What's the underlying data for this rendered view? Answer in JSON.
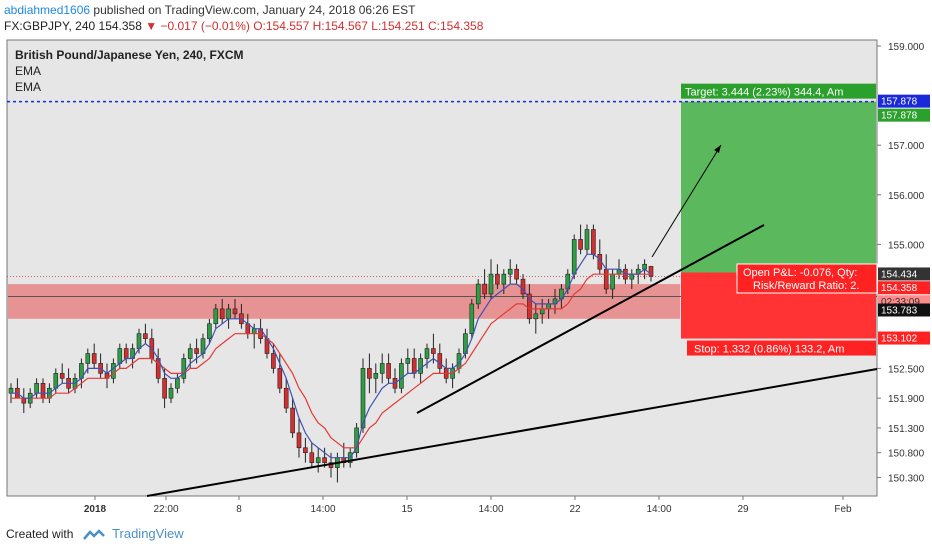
{
  "header": {
    "author": "abdiahmed1606",
    "published_text": "published on TradingView.com, January 24, 2018 06:26 EST",
    "symbol_line": "FX:GBPJPY, 240",
    "last": "154.358",
    "change": "▼ −0.017 (−0.01%)",
    "ohlc": "O:154.557 H:154.567 L:154.251 C:154.358"
  },
  "legend": {
    "title": "British Pound/Japanese Yen, 240, FXCM",
    "ind1": "EMA",
    "ind2": "EMA"
  },
  "footer": {
    "created": "Created with",
    "brand": "TradingView"
  },
  "colors": {
    "up": "#2e9e44",
    "down": "#d32f2f",
    "ema_fast": "#3f51b5",
    "ema_slow": "#e53935",
    "zone": "#e88a8a",
    "target": "#5cb85c",
    "stop": "#ff3333",
    "dotted_line": "#1a2ad8",
    "axis_bg": "#ffffff",
    "plot_bg": "#e6e6e6"
  },
  "chart_data": {
    "type": "candlestick",
    "instrument": "GBPJPY",
    "timeframe": "240",
    "source": "FXCM",
    "y_range": [
      150.0,
      159.2
    ],
    "y_ticks": [
      "159.000",
      "157.000",
      "156.000",
      "155.000",
      "152.500",
      "151.900",
      "151.300",
      "150.800",
      "150.300"
    ],
    "x_ticks": [
      "2018",
      "22:00",
      "8",
      "14:00",
      "15",
      "14:00",
      "22",
      "14:00",
      "29",
      "Feb"
    ],
    "bars": [
      [
        152.0,
        152.2,
        151.8,
        152.1
      ],
      [
        152.1,
        152.3,
        151.9,
        151.9
      ],
      [
        151.9,
        152.1,
        151.6,
        151.8
      ],
      [
        151.8,
        152.1,
        151.7,
        152.0
      ],
      [
        152.0,
        152.3,
        151.9,
        152.2
      ],
      [
        152.2,
        152.3,
        151.8,
        151.9
      ],
      [
        151.9,
        152.2,
        151.8,
        152.1
      ],
      [
        152.1,
        152.5,
        152.0,
        152.4
      ],
      [
        152.4,
        152.6,
        152.2,
        152.3
      ],
      [
        152.3,
        152.5,
        152.0,
        152.1
      ],
      [
        152.1,
        152.4,
        152.0,
        152.3
      ],
      [
        152.3,
        152.7,
        152.1,
        152.6
      ],
      [
        152.6,
        152.9,
        152.4,
        152.8
      ],
      [
        152.8,
        153.0,
        152.5,
        152.6
      ],
      [
        152.6,
        152.8,
        152.3,
        152.4
      ],
      [
        152.4,
        152.6,
        152.1,
        152.3
      ],
      [
        152.3,
        152.7,
        152.2,
        152.6
      ],
      [
        152.6,
        153.0,
        152.5,
        152.9
      ],
      [
        152.9,
        153.0,
        152.6,
        152.7
      ],
      [
        152.7,
        153.0,
        152.5,
        152.9
      ],
      [
        152.9,
        153.3,
        152.8,
        153.2
      ],
      [
        153.2,
        153.4,
        153.0,
        153.1
      ],
      [
        153.1,
        153.3,
        152.6,
        152.7
      ],
      [
        152.7,
        152.9,
        152.2,
        152.3
      ],
      [
        152.3,
        152.5,
        151.7,
        151.9
      ],
      [
        151.9,
        152.2,
        151.8,
        152.1
      ],
      [
        152.1,
        152.4,
        152.0,
        152.3
      ],
      [
        152.3,
        152.8,
        152.2,
        152.7
      ],
      [
        152.7,
        153.0,
        152.5,
        152.9
      ],
      [
        152.9,
        153.1,
        152.6,
        152.8
      ],
      [
        152.8,
        153.2,
        152.7,
        153.1
      ],
      [
        153.1,
        153.5,
        153.0,
        153.4
      ],
      [
        153.4,
        153.8,
        153.3,
        153.7
      ],
      [
        153.7,
        153.9,
        153.4,
        153.5
      ],
      [
        153.5,
        153.8,
        153.3,
        153.7
      ],
      [
        153.7,
        153.9,
        153.5,
        153.6
      ],
      [
        153.6,
        153.8,
        153.3,
        153.4
      ],
      [
        153.4,
        153.6,
        153.1,
        153.2
      ],
      [
        153.2,
        153.4,
        152.9,
        153.3
      ],
      [
        153.3,
        153.5,
        153.0,
        153.1
      ],
      [
        153.1,
        153.3,
        152.7,
        152.8
      ],
      [
        152.8,
        153.0,
        152.4,
        152.5
      ],
      [
        152.5,
        152.8,
        152.0,
        152.1
      ],
      [
        152.1,
        152.3,
        151.6,
        151.7
      ],
      [
        151.7,
        151.9,
        151.1,
        151.2
      ],
      [
        151.2,
        151.5,
        150.7,
        150.9
      ],
      [
        150.9,
        151.1,
        150.6,
        150.8
      ],
      [
        150.8,
        151.0,
        150.5,
        150.6
      ],
      [
        150.6,
        150.9,
        150.4,
        150.7
      ],
      [
        150.7,
        150.9,
        150.5,
        150.6
      ],
      [
        150.6,
        150.8,
        150.3,
        150.5
      ],
      [
        150.5,
        150.8,
        150.2,
        150.7
      ],
      [
        150.7,
        151.0,
        150.5,
        150.6
      ],
      [
        150.6,
        150.9,
        150.5,
        150.8
      ],
      [
        150.8,
        151.4,
        150.7,
        151.3
      ],
      [
        151.3,
        152.7,
        151.2,
        152.5
      ],
      [
        152.5,
        152.8,
        152.0,
        152.3
      ],
      [
        152.3,
        152.6,
        152.0,
        152.4
      ],
      [
        152.4,
        152.8,
        152.2,
        152.6
      ],
      [
        152.6,
        152.8,
        152.2,
        152.3
      ],
      [
        152.3,
        152.5,
        152.0,
        152.1
      ],
      [
        152.1,
        152.7,
        152.0,
        152.6
      ],
      [
        152.6,
        152.9,
        152.4,
        152.7
      ],
      [
        152.7,
        152.9,
        152.3,
        152.4
      ],
      [
        152.4,
        152.8,
        152.2,
        152.7
      ],
      [
        152.7,
        153.0,
        152.5,
        152.9
      ],
      [
        152.9,
        153.2,
        152.6,
        152.8
      ],
      [
        152.8,
        153.0,
        152.4,
        152.5
      ],
      [
        152.5,
        152.7,
        152.2,
        152.3
      ],
      [
        152.3,
        152.6,
        152.1,
        152.5
      ],
      [
        152.5,
        152.9,
        152.4,
        152.8
      ],
      [
        152.8,
        153.3,
        152.7,
        153.2
      ],
      [
        153.2,
        153.9,
        153.1,
        153.8
      ],
      [
        153.8,
        154.3,
        153.7,
        154.2
      ],
      [
        154.2,
        154.5,
        153.9,
        154.0
      ],
      [
        154.0,
        154.7,
        153.9,
        154.4
      ],
      [
        154.4,
        154.6,
        154.1,
        154.2
      ],
      [
        154.2,
        154.5,
        154.0,
        154.4
      ],
      [
        154.4,
        154.7,
        154.2,
        154.5
      ],
      [
        154.5,
        154.6,
        154.2,
        154.3
      ],
      [
        154.3,
        154.4,
        153.9,
        154.0
      ],
      [
        154.0,
        154.2,
        153.4,
        153.5
      ],
      [
        153.5,
        153.8,
        153.2,
        153.6
      ],
      [
        153.6,
        153.9,
        153.4,
        153.7
      ],
      [
        153.7,
        153.9,
        153.5,
        153.8
      ],
      [
        153.8,
        154.1,
        153.6,
        153.9
      ],
      [
        153.9,
        154.2,
        153.7,
        154.1
      ],
      [
        154.1,
        154.5,
        154.0,
        154.4
      ],
      [
        154.4,
        155.2,
        154.3,
        155.1
      ],
      [
        155.1,
        155.4,
        154.8,
        154.9
      ],
      [
        154.9,
        155.4,
        154.8,
        155.3
      ],
      [
        155.3,
        155.4,
        154.7,
        154.8
      ],
      [
        154.8,
        155.1,
        154.4,
        154.5
      ],
      [
        154.5,
        154.8,
        154.0,
        154.1
      ],
      [
        154.1,
        154.5,
        153.9,
        154.4
      ],
      [
        154.4,
        154.7,
        154.3,
        154.5
      ],
      [
        154.5,
        154.6,
        154.2,
        154.3
      ],
      [
        154.3,
        154.5,
        154.1,
        154.4
      ],
      [
        154.4,
        154.6,
        154.2,
        154.5
      ],
      [
        154.5,
        154.7,
        154.3,
        154.6
      ],
      [
        154.557,
        154.567,
        154.251,
        154.358
      ]
    ],
    "ema_fast": [
      152.0,
      152.0,
      151.9,
      151.9,
      152.0,
      152.0,
      152.0,
      152.1,
      152.2,
      152.2,
      152.2,
      152.3,
      152.5,
      152.5,
      152.5,
      152.4,
      152.5,
      152.6,
      152.7,
      152.7,
      152.9,
      153.0,
      152.9,
      152.7,
      152.4,
      152.3,
      152.3,
      152.4,
      152.6,
      152.7,
      152.8,
      153.0,
      153.3,
      153.4,
      153.5,
      153.5,
      153.5,
      153.4,
      153.3,
      153.3,
      153.1,
      152.9,
      152.6,
      152.3,
      151.9,
      151.5,
      151.2,
      151.0,
      150.9,
      150.8,
      150.7,
      150.7,
      150.7,
      150.7,
      150.9,
      151.4,
      151.7,
      151.9,
      152.1,
      152.2,
      152.2,
      152.3,
      152.4,
      152.4,
      152.5,
      152.6,
      152.7,
      152.6,
      152.5,
      152.5,
      152.6,
      152.8,
      153.1,
      153.5,
      153.7,
      153.9,
      154.0,
      154.1,
      154.2,
      154.2,
      154.1,
      153.9,
      153.8,
      153.8,
      153.8,
      153.8,
      153.9,
      154.1,
      154.4,
      154.6,
      154.8,
      154.8,
      154.7,
      154.5,
      154.5,
      154.5,
      154.4,
      154.4,
      154.4,
      154.5,
      154.4
    ],
    "ema_slow": [
      151.9,
      151.9,
      151.9,
      151.9,
      151.9,
      151.9,
      151.9,
      152.0,
      152.0,
      152.0,
      152.1,
      152.2,
      152.3,
      152.3,
      152.3,
      152.3,
      152.4,
      152.5,
      152.5,
      152.6,
      152.7,
      152.7,
      152.7,
      152.6,
      152.5,
      152.4,
      152.4,
      152.4,
      152.5,
      152.5,
      152.6,
      152.7,
      152.9,
      153.0,
      153.1,
      153.2,
      153.2,
      153.2,
      153.2,
      153.2,
      153.1,
      153.0,
      152.8,
      152.6,
      152.4,
      152.1,
      151.9,
      151.6,
      151.4,
      151.3,
      151.1,
      151.0,
      150.9,
      150.9,
      150.9,
      151.1,
      151.3,
      151.4,
      151.6,
      151.7,
      151.8,
      151.9,
      152.0,
      152.1,
      152.2,
      152.3,
      152.4,
      152.4,
      152.4,
      152.4,
      152.5,
      152.6,
      152.8,
      153.0,
      153.2,
      153.4,
      153.5,
      153.6,
      153.7,
      153.8,
      153.8,
      153.7,
      153.7,
      153.7,
      153.7,
      153.7,
      153.7,
      153.8,
      154.0,
      154.1,
      154.3,
      154.4,
      154.4,
      154.4,
      154.4,
      154.4,
      154.4,
      154.4,
      154.4,
      154.4,
      154.4
    ],
    "price_labels": {
      "target_line": "157.878",
      "target_fill": "157.878",
      "entry": "154.434",
      "last": "154.358",
      "countdown": "02:33:09",
      "zone_mid": "153.783",
      "stop": "153.102"
    },
    "levels": {
      "target": 157.878,
      "entry": 154.434,
      "last": 154.358,
      "zone_top": 154.2,
      "zone_bottom": 153.5,
      "zone_line": 153.95,
      "stop": 153.102
    },
    "annotations": {
      "target": "Target: 3.444 (2.23%) 344.4, Am",
      "stop": "Stop: 1.332 (0.86%) 133.2, Am",
      "pnl": "Open P&L: -0.076, Qty:",
      "rr": "Risk/Reward Ratio: 2."
    }
  }
}
